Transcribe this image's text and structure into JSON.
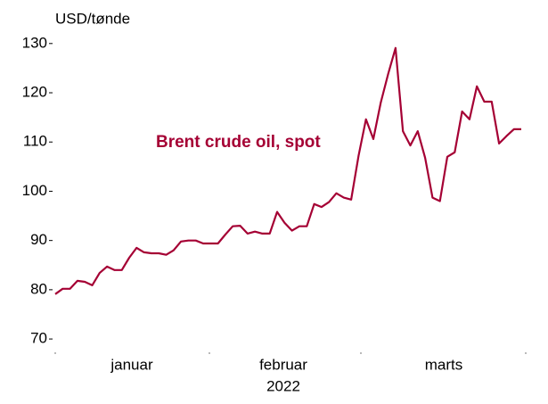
{
  "chart_data": {
    "type": "line",
    "y_axis_label": "USD/tønde",
    "annotation": "Brent crude oil, spot",
    "month_labels": [
      "januar",
      "februar",
      "marts"
    ],
    "year_label": "2022",
    "categories": [
      null,
      null,
      null,
      null,
      null,
      null,
      null,
      null,
      null,
      null,
      null,
      null,
      null,
      null,
      null,
      null,
      null,
      null,
      null,
      null,
      null,
      null,
      null,
      null,
      null,
      null,
      null,
      null,
      null,
      null,
      null,
      null,
      null,
      null,
      null,
      null,
      null,
      null,
      null,
      null,
      null,
      null,
      null,
      null,
      null,
      null,
      null,
      null,
      null,
      null,
      null,
      null,
      null,
      null,
      null,
      null,
      null,
      null,
      null,
      null,
      null,
      null,
      null,
      null
    ],
    "series": [
      {
        "name": "Brent crude oil, spot",
        "color": "#a50034",
        "values": [
          79.1,
          80.2,
          80.2,
          81.8,
          81.6,
          80.9,
          83.4,
          84.7,
          84.0,
          84.0,
          86.5,
          88.5,
          87.6,
          87.4,
          87.4,
          87.1,
          88.0,
          89.8,
          90.0,
          90.0,
          89.4,
          89.4,
          89.4,
          91.2,
          92.9,
          93.0,
          91.4,
          91.8,
          91.4,
          91.4,
          95.8,
          93.6,
          92.0,
          92.9,
          92.9,
          97.4,
          96.8,
          97.8,
          99.6,
          98.7,
          98.3,
          107.2,
          114.6,
          110.6,
          118.0,
          123.8,
          129.1,
          112.2,
          109.3,
          112.2,
          106.8,
          98.7,
          98.0,
          107.0,
          107.9,
          116.2,
          114.6,
          121.3,
          118.2,
          118.2,
          109.7,
          111.2,
          112.6,
          112.6
        ]
      }
    ],
    "ylim": [
      67.3,
      132.5
    ],
    "yticks": [
      70,
      80,
      90,
      100,
      110,
      120,
      130
    ]
  }
}
